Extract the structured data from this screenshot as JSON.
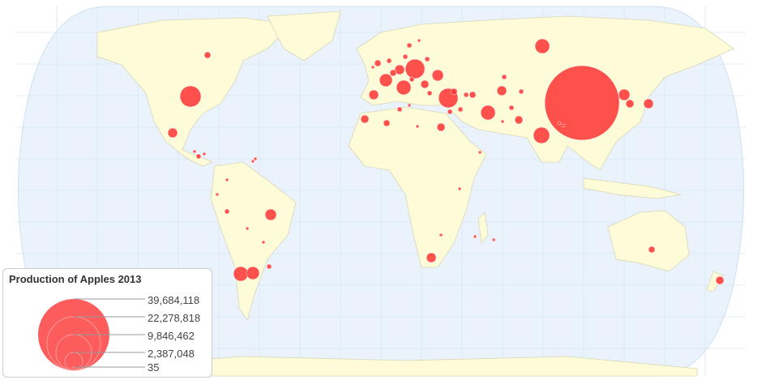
{
  "legend": {
    "title": "Production of Apples 2013",
    "values": [
      "39,684,118",
      "22,278,818",
      "9,846,462",
      "2,387,048",
      "35"
    ]
  },
  "colors": {
    "ocean": "#eaf3fb",
    "land": "#fefcd8",
    "border": "#d8d6b8",
    "bubble": "#ff3333",
    "legend_bubble": "#fd5c5c"
  }
}
